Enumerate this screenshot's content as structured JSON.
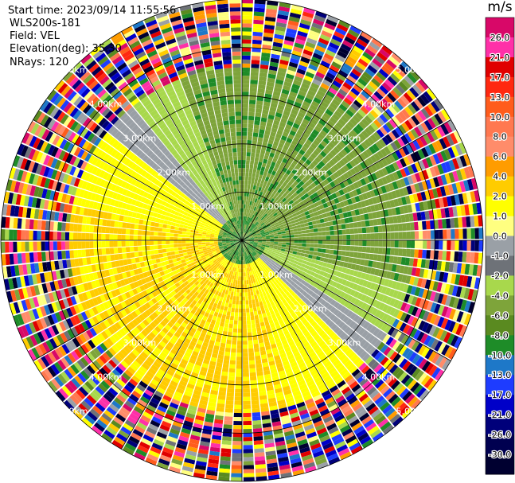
{
  "header": {
    "start_time": "Start time: 2023/09/14 11:55:56",
    "instrument": "WLS200s-181",
    "field": "Field: VEL",
    "elevation": "Elevation(deg): 35.30",
    "nrays": "NRays: 120"
  },
  "chart_data": {
    "type": "heatmap",
    "projection": "polar PPI",
    "field": "VEL",
    "units": "m/s",
    "n_rays": 120,
    "range_rings_km": [
      1.0,
      2.0,
      3.0,
      4.0,
      5.0
    ],
    "ring_labels": [
      "1.00km",
      "2.00km",
      "3.00km",
      "4.00km",
      "5.00km"
    ],
    "max_range_km": 5.0,
    "grid": true,
    "colorbar": {
      "title": "m/s",
      "ticks": [
        "26.0",
        "21.0",
        "17.0",
        "13.0",
        "10.0",
        "8.0",
        "6.0",
        "4.0",
        "2.0",
        "1.0",
        "0.0",
        "-1.0",
        "-2.0",
        "-4.0",
        "-6.0",
        "-8.0",
        "-10.0",
        "-13.0",
        "-17.0",
        "-21.0",
        "-26.0",
        "-30.0"
      ],
      "bands": [
        {
          "color": "#d80868",
          "label": ""
        },
        {
          "color": "#ff30a8",
          "label": "26.0"
        },
        {
          "color": "#e00000",
          "label": "21.0"
        },
        {
          "color": "#ff2810",
          "label": "17.0"
        },
        {
          "color": "#ff5c1c",
          "label": "13.0"
        },
        {
          "color": "#ff7850",
          "label": "10.0"
        },
        {
          "color": "#ff8c6a",
          "label": "8.0"
        },
        {
          "color": "#ff9c00",
          "label": "6.0"
        },
        {
          "color": "#ffcc00",
          "label": "4.0"
        },
        {
          "color": "#ffff00",
          "label": "2.0"
        },
        {
          "color": "#ffff80",
          "label": "1.0"
        },
        {
          "color": "#9aa0a6",
          "label": "0.0"
        },
        {
          "color": "#6e7278",
          "label": "-1.0"
        },
        {
          "color": "#a8d84c",
          "label": "-2.0"
        },
        {
          "color": "#7ea43a",
          "label": "-4.0"
        },
        {
          "color": "#5a8a20",
          "label": "-6.0"
        },
        {
          "color": "#1e8c28",
          "label": "-8.0"
        },
        {
          "color": "#1e78c8",
          "label": "-10.0"
        },
        {
          "color": "#1e3cff",
          "label": "-13.0"
        },
        {
          "color": "#0000c8",
          "label": "-17.0"
        },
        {
          "color": "#00007a",
          "label": "-21.0"
        },
        {
          "color": "#000050",
          "label": "-26.0"
        },
        {
          "color": "#000030",
          "label": "-30.0"
        }
      ]
    },
    "colors": {
      "background": "#ffffff",
      "grid": "#000000",
      "ring_label": "#ffffff"
    }
  }
}
